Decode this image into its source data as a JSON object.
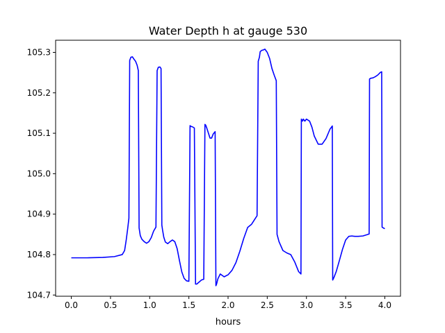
{
  "chart_data": {
    "type": "line",
    "title": "Water Depth h at gauge 530",
    "xlabel": "hours",
    "ylabel": "",
    "xlim": [
      -0.2,
      4.2
    ],
    "ylim": [
      104.697,
      105.33
    ],
    "xticks": [
      0.0,
      0.5,
      1.0,
      1.5,
      2.0,
      2.5,
      3.0,
      3.5,
      4.0
    ],
    "xtick_labels": [
      "0.0",
      "0.5",
      "1.0",
      "1.5",
      "2.0",
      "2.5",
      "3.0",
      "3.5",
      "4.0"
    ],
    "yticks": [
      104.7,
      104.8,
      104.9,
      105.0,
      105.1,
      105.2,
      105.3
    ],
    "ytick_labels": [
      "104.7",
      "104.8",
      "104.9",
      "105.0",
      "105.1",
      "105.2",
      "105.3"
    ],
    "grid": false,
    "series": [
      {
        "color": "#0000ff",
        "x": [
          0.0,
          0.2,
          0.4,
          0.55,
          0.65,
          0.68,
          0.7,
          0.72,
          0.735,
          0.745,
          0.76,
          0.78,
          0.8,
          0.82,
          0.84,
          0.855,
          0.865,
          0.88,
          0.9,
          0.93,
          0.96,
          0.99,
          1.02,
          1.05,
          1.08,
          1.095,
          1.11,
          1.13,
          1.145,
          1.155,
          1.165,
          1.18,
          1.2,
          1.23,
          1.26,
          1.29,
          1.32,
          1.35,
          1.38,
          1.41,
          1.44,
          1.47,
          1.5,
          1.515,
          1.525,
          1.545,
          1.57,
          1.585,
          1.6,
          1.63,
          1.66,
          1.69,
          1.705,
          1.715,
          1.73,
          1.75,
          1.77,
          1.79,
          1.81,
          1.835,
          1.845,
          1.855,
          1.87,
          1.9,
          1.95,
          2.0,
          2.05,
          2.1,
          2.15,
          2.2,
          2.25,
          2.3,
          2.35,
          2.37,
          2.385,
          2.4,
          2.41,
          2.43,
          2.45,
          2.47,
          2.5,
          2.53,
          2.56,
          2.59,
          2.615,
          2.625,
          2.65,
          2.7,
          2.75,
          2.8,
          2.85,
          2.9,
          2.93,
          2.935,
          2.95,
          2.96,
          2.98,
          3.0,
          3.04,
          3.07,
          3.1,
          3.15,
          3.2,
          3.25,
          3.3,
          3.33,
          3.335,
          3.35,
          3.38,
          3.42,
          3.46,
          3.5,
          3.54,
          3.58,
          3.62,
          3.66,
          3.72,
          3.77,
          3.8,
          3.805,
          3.82,
          3.85,
          3.88,
          3.91,
          3.94,
          3.96,
          3.965,
          3.98,
          4.0
        ],
        "y": [
          104.792,
          104.792,
          104.793,
          104.795,
          104.8,
          104.81,
          104.835,
          104.865,
          104.89,
          105.28,
          105.288,
          105.289,
          105.283,
          105.278,
          105.268,
          105.255,
          104.866,
          104.847,
          104.838,
          104.832,
          104.828,
          104.832,
          104.842,
          104.858,
          104.868,
          105.255,
          105.263,
          105.264,
          105.26,
          104.873,
          104.86,
          104.843,
          104.831,
          104.827,
          104.832,
          104.836,
          104.832,
          104.815,
          104.785,
          104.757,
          104.741,
          104.735,
          104.734,
          105.119,
          105.117,
          105.116,
          105.113,
          104.727,
          104.727,
          104.732,
          104.737,
          104.739,
          105.122,
          105.12,
          105.112,
          105.1,
          105.088,
          105.088,
          105.098,
          105.104,
          104.723,
          104.728,
          104.74,
          104.752,
          104.745,
          104.75,
          104.761,
          104.78,
          104.808,
          104.84,
          104.867,
          104.875,
          104.89,
          104.896,
          105.278,
          105.288,
          105.302,
          105.305,
          105.306,
          105.308,
          105.3,
          105.285,
          105.26,
          105.243,
          105.23,
          104.85,
          104.832,
          104.81,
          104.804,
          104.8,
          104.782,
          104.758,
          104.752,
          105.135,
          105.13,
          105.135,
          105.13,
          105.135,
          105.13,
          105.115,
          105.093,
          105.073,
          105.073,
          105.087,
          105.11,
          105.118,
          104.737,
          104.743,
          104.758,
          104.785,
          104.813,
          104.836,
          104.845,
          104.846,
          104.845,
          104.845,
          104.846,
          104.849,
          104.851,
          105.234,
          105.236,
          105.237,
          105.24,
          105.244,
          105.25,
          105.252,
          104.868,
          104.866,
          104.864
        ]
      }
    ]
  }
}
